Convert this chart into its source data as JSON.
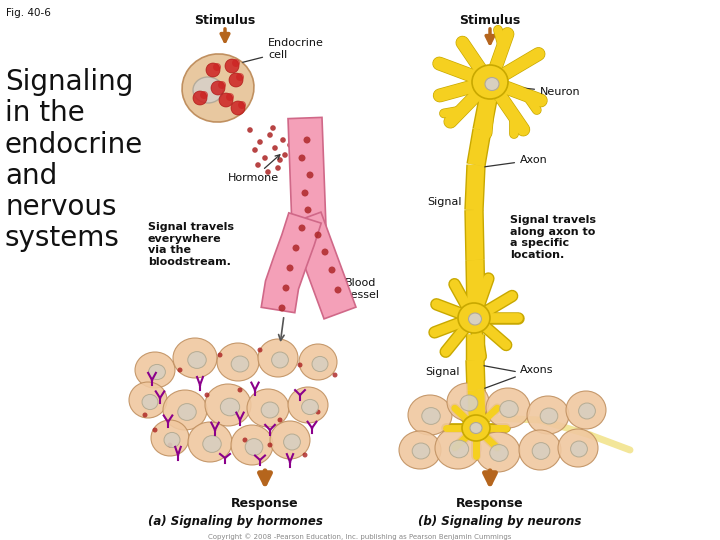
{
  "fig_label": "Fig. 40-6",
  "title_left": "Signaling\nin the\nendocrine\nand\nnervous\nsystems",
  "background_color": "#ffffff",
  "stimulus_arrow_color": "#b5651d",
  "hormone_dot_color": "#b03030",
  "blood_vessel_color": "#f4a0b8",
  "blood_vessel_edge": "#d06888",
  "endocrine_cell_color": "#e8c8a0",
  "endocrine_cell_edge": "#c09060",
  "nucleus_color": "#d8d0c8",
  "neuron_color": "#f5d020",
  "neuron_outline": "#c8a800",
  "neuron_nucleus_color": "#d8d0c0",
  "axon_color": "#f5d020",
  "target_cell_color": "#f0c8a0",
  "target_cell_edge": "#c09060",
  "target_nucleus_color": "#d8cfc0",
  "signal_arrow_color": "#c0392b",
  "text_color": "#111111",
  "hormone_scatter_color": "#9b59b6",
  "label_a": "(a) Signaling by hormones",
  "label_b": "(b) Signaling by neurons",
  "copyright": "Copyright © 2008 -Pearson Education, Inc. publishing as Pearson Benjamin Cummings"
}
